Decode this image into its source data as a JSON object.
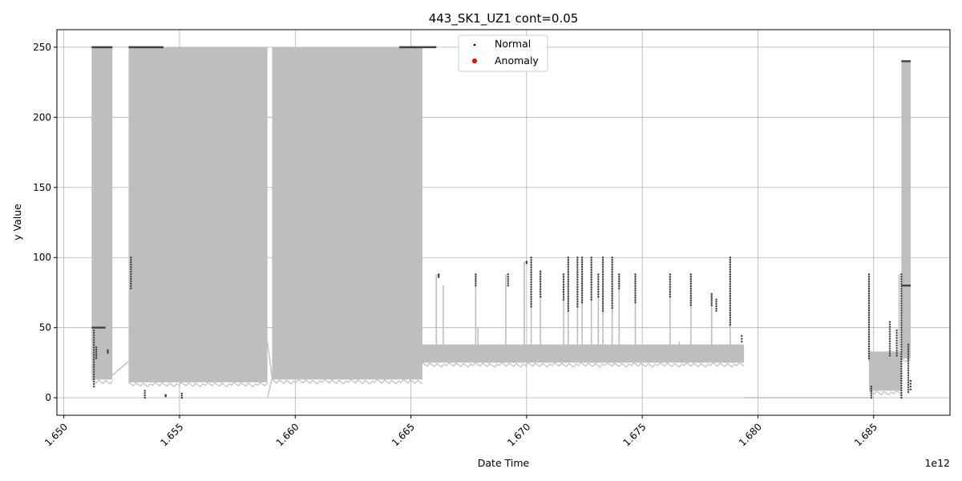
{
  "chart_data": {
    "type": "line",
    "title": "443_SK1_UZ1 cont=0.05",
    "xlabel": "Date Time",
    "ylabel": "y Value",
    "x_offset_label": "1e12",
    "xlim": [
      1.6497,
      1.6883
    ],
    "ylim": [
      -12.5,
      262.5
    ],
    "x_ticks": [
      1.65,
      1.655,
      1.66,
      1.665,
      1.67,
      1.675,
      1.68,
      1.685
    ],
    "x_tick_labels": [
      "1.650",
      "1.655",
      "1.660",
      "1.665",
      "1.670",
      "1.675",
      "1.680",
      "1.685"
    ],
    "y_ticks": [
      0,
      50,
      100,
      150,
      200,
      250
    ],
    "y_tick_labels": [
      "0",
      "50",
      "100",
      "150",
      "200",
      "250"
    ],
    "grid": true,
    "legend": {
      "placement": "top-center",
      "entries": [
        {
          "label": "Normal",
          "color": "#000000"
        },
        {
          "label": "Anomaly",
          "color": "#ff0000"
        }
      ]
    },
    "colors": {
      "line": "#bebebe",
      "normal": "#404040",
      "anomaly": "#ff0000",
      "grid": "#b0b0b0"
    },
    "series": [
      {
        "name": "Normal",
        "kind": "line-envelope",
        "segments": [
          {
            "x": [
              1.6512,
              1.6521
            ],
            "low": 13,
            "high": 250
          },
          {
            "x": [
              1.6528,
              1.6588
            ],
            "low": 11,
            "high": 250
          },
          {
            "x": [
              1.659,
              1.6655
            ],
            "low": 13,
            "high": 250
          },
          {
            "x": [
              1.6655,
              1.6794
            ],
            "low": 25,
            "high": 38
          },
          {
            "x": [
              1.6848,
              1.6862
            ],
            "low": 5,
            "high": 33
          },
          {
            "x": [
              1.6862,
              1.6866
            ],
            "low": 28,
            "high": 240
          }
        ],
        "spikes": [
          {
            "x": 1.6661,
            "y": 88
          },
          {
            "x": 1.6664,
            "y": 80
          },
          {
            "x": 1.6679,
            "y": 50
          },
          {
            "x": 1.6678,
            "y": 88
          },
          {
            "x": 1.6691,
            "y": 88
          },
          {
            "x": 1.6699,
            "y": 97
          },
          {
            "x": 1.6702,
            "y": 100
          },
          {
            "x": 1.6706,
            "y": 90
          },
          {
            "x": 1.6716,
            "y": 88
          },
          {
            "x": 1.6718,
            "y": 100
          },
          {
            "x": 1.6722,
            "y": 100
          },
          {
            "x": 1.6724,
            "y": 100
          },
          {
            "x": 1.6728,
            "y": 100
          },
          {
            "x": 1.6731,
            "y": 88
          },
          {
            "x": 1.6733,
            "y": 100
          },
          {
            "x": 1.6737,
            "y": 100
          },
          {
            "x": 1.674,
            "y": 88
          },
          {
            "x": 1.6747,
            "y": 88
          },
          {
            "x": 1.6762,
            "y": 88
          },
          {
            "x": 1.6766,
            "y": 40
          },
          {
            "x": 1.6771,
            "y": 88
          },
          {
            "x": 1.678,
            "y": 74
          },
          {
            "x": 1.6788,
            "y": 100
          },
          {
            "x": 1.6848,
            "y": 88
          },
          {
            "x": 1.6861,
            "y": 88
          }
        ],
        "flat": [
          {
            "x": [
              1.6794,
              1.6848
            ],
            "y": 0
          }
        ]
      },
      {
        "name": "Anomaly",
        "kind": "scatter",
        "points": []
      }
    ],
    "point_clusters": [
      {
        "x": 1.6513,
        "y": [
          8,
          48
        ]
      },
      {
        "x": 1.6514,
        "y": [
          28,
          36
        ]
      },
      {
        "x": 1.6519,
        "y": [
          32,
          34
        ]
      },
      {
        "x": 1.6529,
        "y": [
          78,
          100
        ]
      },
      {
        "x": 1.6535,
        "y": [
          0,
          5
        ]
      },
      {
        "x": 1.6544,
        "y": [
          1,
          2
        ]
      },
      {
        "x": 1.6551,
        "y": [
          0,
          3
        ]
      },
      {
        "x": 1.6662,
        "y": [
          86,
          88
        ]
      },
      {
        "x": 1.6678,
        "y": [
          80,
          88
        ]
      },
      {
        "x": 1.6692,
        "y": [
          80,
          88
        ]
      },
      {
        "x": 1.67,
        "y": [
          96,
          97
        ]
      },
      {
        "x": 1.6702,
        "y": [
          65,
          100
        ]
      },
      {
        "x": 1.6706,
        "y": [
          72,
          90
        ]
      },
      {
        "x": 1.6716,
        "y": [
          70,
          88
        ]
      },
      {
        "x": 1.6718,
        "y": [
          62,
          100
        ]
      },
      {
        "x": 1.6722,
        "y": [
          65,
          100
        ]
      },
      {
        "x": 1.6724,
        "y": [
          68,
          100
        ]
      },
      {
        "x": 1.6728,
        "y": [
          70,
          100
        ]
      },
      {
        "x": 1.6731,
        "y": [
          72,
          88
        ]
      },
      {
        "x": 1.6733,
        "y": [
          62,
          100
        ]
      },
      {
        "x": 1.6737,
        "y": [
          64,
          100
        ]
      },
      {
        "x": 1.674,
        "y": [
          78,
          88
        ]
      },
      {
        "x": 1.6747,
        "y": [
          68,
          88
        ]
      },
      {
        "x": 1.6762,
        "y": [
          72,
          88
        ]
      },
      {
        "x": 1.6771,
        "y": [
          66,
          88
        ]
      },
      {
        "x": 1.678,
        "y": [
          66,
          74
        ]
      },
      {
        "x": 1.6782,
        "y": [
          62,
          70
        ]
      },
      {
        "x": 1.6788,
        "y": [
          52,
          100
        ]
      },
      {
        "x": 1.6793,
        "y": [
          40,
          44
        ]
      },
      {
        "x": 1.6848,
        "y": [
          28,
          88
        ]
      },
      {
        "x": 1.6849,
        "y": [
          0,
          8
        ]
      },
      {
        "x": 1.6857,
        "y": [
          30,
          54
        ]
      },
      {
        "x": 1.686,
        "y": [
          30,
          48
        ]
      },
      {
        "x": 1.6862,
        "y": [
          0,
          88
        ]
      },
      {
        "x": 1.6865,
        "y": [
          4,
          38
        ]
      },
      {
        "x": 1.6866,
        "y": [
          6,
          12
        ]
      }
    ],
    "plateaus": [
      {
        "x": [
          1.6512,
          1.6521
        ],
        "y": 250
      },
      {
        "x": [
          1.6528,
          1.6543
        ],
        "y": 250
      },
      {
        "x": [
          1.6645,
          1.6661
        ],
        "y": 250
      },
      {
        "x": [
          1.6512,
          1.6518
        ],
        "y": 50
      },
      {
        "x": [
          1.6862,
          1.6866
        ],
        "y": 240
      },
      {
        "x": [
          1.6862,
          1.6866
        ],
        "y": 80
      }
    ]
  }
}
